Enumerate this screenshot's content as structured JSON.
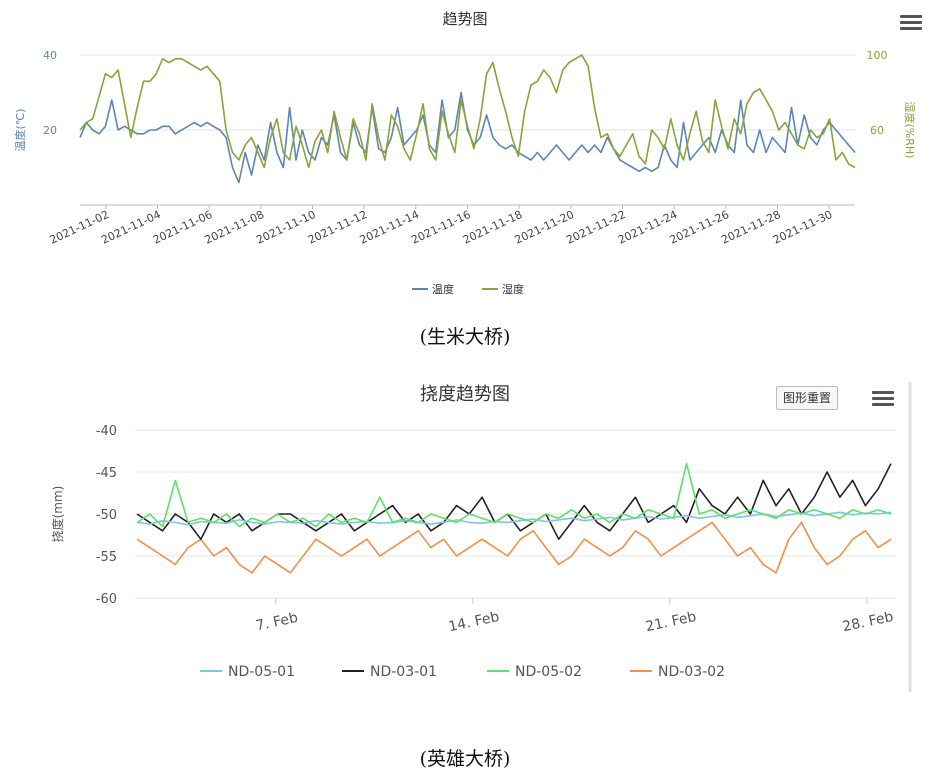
{
  "charts": [
    {
      "type": "line",
      "title": "趋势图",
      "caption": "(生米大桥)",
      "ylabel_left": "温度(℃)",
      "ylabel_right": "湿度(%RH)",
      "y_left_ticks": [
        20,
        40
      ],
      "y_right_ticks": [
        60,
        100
      ],
      "ylim_left": [
        0,
        40
      ],
      "ylim_right": [
        20,
        100
      ],
      "x_tick_labels": [
        "2021-11-02",
        "2021-11-04",
        "2021-11-06",
        "2021-11-08",
        "2021-11-10",
        "2021-11-12",
        "2021-11-14",
        "2021-11-16",
        "2021-11-18",
        "2021-11-20",
        "2021-11-22",
        "2021-11-24",
        "2021-11-26",
        "2021-11-28",
        "2021-11-30"
      ],
      "x_start": "2021-11-01",
      "x_end": "2021-12-01",
      "legend": [
        "温度",
        "湿度"
      ],
      "colors": {
        "温度": "#5b86b5",
        "湿度": "#8aa33a"
      },
      "series": [
        {
          "name": "温度",
          "axis": "left",
          "values": [
            18,
            22,
            20,
            19,
            21,
            28,
            20,
            21,
            20,
            19,
            19,
            20,
            20,
            21,
            21,
            19,
            20,
            21,
            22,
            21,
            22,
            21,
            20,
            18,
            10,
            6,
            14,
            8,
            16,
            12,
            22,
            14,
            10,
            26,
            12,
            20,
            14,
            12,
            18,
            16,
            24,
            14,
            12,
            22,
            16,
            14,
            26,
            15,
            14,
            18,
            26,
            16,
            18,
            20,
            24,
            16,
            14,
            28,
            18,
            20,
            30,
            20,
            16,
            18,
            24,
            18,
            16,
            15,
            16,
            14,
            13,
            12,
            14,
            12,
            14,
            16,
            14,
            12,
            14,
            16,
            14,
            16,
            14,
            18,
            15,
            12,
            11,
            10,
            9,
            10,
            9,
            10,
            16,
            12,
            10,
            22,
            12,
            14,
            16,
            18,
            14,
            20,
            16,
            14,
            28,
            16,
            14,
            20,
            14,
            18,
            16,
            14,
            26,
            16,
            24,
            18,
            16,
            20,
            22,
            20,
            18,
            16,
            14
          ]
        },
        {
          "name": "湿度",
          "axis": "right",
          "values": [
            60,
            64,
            66,
            78,
            90,
            88,
            92,
            74,
            56,
            72,
            86,
            86,
            90,
            98,
            96,
            98,
            98,
            96,
            94,
            92,
            94,
            90,
            86,
            60,
            48,
            44,
            52,
            56,
            48,
            40,
            56,
            66,
            48,
            44,
            62,
            52,
            40,
            54,
            60,
            48,
            70,
            56,
            44,
            66,
            58,
            44,
            74,
            56,
            44,
            68,
            62,
            50,
            44,
            58,
            74,
            50,
            44,
            70,
            58,
            48,
            76,
            62,
            50,
            66,
            90,
            96,
            82,
            70,
            56,
            46,
            70,
            84,
            86,
            92,
            88,
            80,
            92,
            96,
            98,
            100,
            94,
            72,
            56,
            58,
            50,
            46,
            52,
            58,
            46,
            42,
            60,
            56,
            50,
            66,
            52,
            44,
            58,
            70,
            54,
            48,
            76,
            62,
            50,
            66,
            58,
            74,
            80,
            82,
            76,
            70,
            60,
            64,
            58,
            52,
            50,
            60,
            56,
            58,
            66,
            44,
            48,
            42,
            40
          ]
        }
      ]
    },
    {
      "type": "line",
      "title": "挠度趋势图",
      "caption": "(英雄大桥)",
      "ylabel": "挠度(mm)",
      "y_ticks": [
        -40,
        -45,
        -50,
        -55,
        -60
      ],
      "ylim": [
        -60,
        -40
      ],
      "x_tick_labels": [
        "7. Feb",
        "14. Feb",
        "21. Feb",
        "28. Feb"
      ],
      "x_tick_values": [
        7,
        14,
        21,
        28
      ],
      "xlim": [
        2,
        29
      ],
      "reset_button": "图形重置",
      "legend": [
        "ND-05-01",
        "ND-03-01",
        "ND-05-02",
        "ND-03-02"
      ],
      "colors": {
        "ND-05-01": "#7cc6e8",
        "ND-03-01": "#222222",
        "ND-05-02": "#5ee06a",
        "ND-03-02": "#f0914a"
      },
      "series": [
        {
          "name": "ND-05-01",
          "values": [
            -51,
            -51.2,
            -50.8,
            -51,
            -51.3,
            -50.9,
            -51,
            -51.1,
            -50.7,
            -51,
            -51.2,
            -50.9,
            -51,
            -51.1,
            -50.8,
            -51,
            -51.2,
            -51,
            -50.9,
            -51.1,
            -51,
            -50.8,
            -51,
            -51.2,
            -51,
            -50.7,
            -51,
            -51.1,
            -50.9,
            -51,
            -50.8,
            -50.6,
            -50.9,
            -50.7,
            -50.5,
            -50.8,
            -50.6,
            -50.4,
            -50.7,
            -50.5,
            -50.3,
            -50.6,
            -50.4,
            -50.2,
            -50.5,
            -50.3,
            -50.1,
            -50.4,
            -50.2,
            -50,
            -50.3,
            -50.1,
            -49.9,
            -50.2,
            -50,
            -49.8,
            -50.1,
            -49.9,
            -50,
            -49.8
          ]
        },
        {
          "name": "ND-03-01",
          "values": [
            -50,
            -51,
            -52,
            -50,
            -51,
            -53,
            -50,
            -51,
            -50,
            -52,
            -51,
            -50,
            -50,
            -51,
            -52,
            -51,
            -50,
            -52,
            -51,
            -50,
            -49,
            -51,
            -50,
            -52,
            -51,
            -49,
            -50,
            -48,
            -51,
            -50,
            -52,
            -51,
            -50,
            -53,
            -51,
            -49,
            -51,
            -52,
            -50,
            -48,
            -51,
            -50,
            -49,
            -51,
            -47,
            -49,
            -50,
            -48,
            -50,
            -46,
            -49,
            -47,
            -50,
            -48,
            -45,
            -48,
            -46,
            -49,
            -47,
            -44
          ]
        },
        {
          "name": "ND-05-02",
          "values": [
            -51,
            -50,
            -51.5,
            -46,
            -51,
            -50.5,
            -51,
            -50,
            -51.5,
            -50.5,
            -51,
            -50,
            -51,
            -50.5,
            -51.5,
            -50,
            -51,
            -50.5,
            -51,
            -48,
            -51,
            -50.5,
            -51,
            -50,
            -50.5,
            -51,
            -50,
            -50.5,
            -51,
            -50,
            -50.5,
            -51,
            -50,
            -50.5,
            -49.5,
            -50.5,
            -50,
            -51,
            -50,
            -50.5,
            -49.5,
            -50,
            -50.5,
            -44,
            -50,
            -49.5,
            -50.5,
            -50,
            -49.5,
            -50,
            -50.5,
            -49.5,
            -50,
            -49.5,
            -50,
            -50.5,
            -49.5,
            -50,
            -49.5,
            -50
          ]
        },
        {
          "name": "ND-03-02",
          "values": [
            -53,
            -54,
            -55,
            -56,
            -54,
            -53,
            -55,
            -54,
            -56,
            -57,
            -55,
            -56,
            -57,
            -55,
            -53,
            -54,
            -55,
            -54,
            -53,
            -55,
            -54,
            -53,
            -52,
            -54,
            -53,
            -55,
            -54,
            -53,
            -54,
            -55,
            -53,
            -52,
            -54,
            -56,
            -55,
            -53,
            -54,
            -55,
            -54,
            -52,
            -53,
            -55,
            -54,
            -53,
            -52,
            -51,
            -53,
            -55,
            -54,
            -56,
            -57,
            -53,
            -51,
            -54,
            -56,
            -55,
            -53,
            -52,
            -54,
            -53
          ]
        }
      ]
    }
  ]
}
